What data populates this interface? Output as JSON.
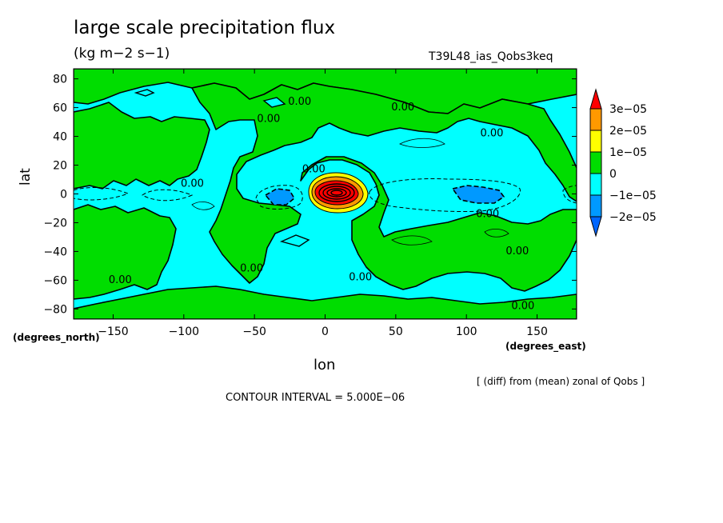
{
  "chart_data": {
    "type": "contour",
    "title": "large scale precipitation flux",
    "units": "(kg m−2 s−1)",
    "run_id": "T39L48_ias_Qobs3keq",
    "xlabel": "lon",
    "ylabel": "lat",
    "x_units": "(degrees_east)",
    "y_units": "(degrees_north)",
    "derivation": "[ (diff) from (mean) zonal of Qobs ]",
    "contour_interval": "CONTOUR INTERVAL = 5.000E−06",
    "xlim": [
      -178,
      178
    ],
    "ylim": [
      -87,
      87
    ],
    "x_ticks": [
      -150,
      -100,
      -50,
      0,
      50,
      100,
      150
    ],
    "x_tick_labels": [
      "−150",
      "−100",
      "−50",
      "0",
      "50",
      "100",
      "150"
    ],
    "y_ticks": [
      80,
      60,
      40,
      20,
      0,
      -20,
      -40,
      -60,
      -80
    ],
    "y_tick_labels": [
      "80",
      "60",
      "40",
      "20",
      "0",
      "−20",
      "−40",
      "−60",
      "−80"
    ],
    "levels": [
      -2e-05,
      -1e-05,
      0,
      1e-05,
      2e-05,
      3e-05
    ],
    "colorbar": [
      {
        "label": "3e−05",
        "color": "#ff0000"
      },
      {
        "label": "2e−05",
        "color": "#ff9900"
      },
      {
        "label": "1e−05",
        "color": "#ffff00"
      },
      {
        "label": "0",
        "color": "#00dd00"
      },
      {
        "label": "−1e−05",
        "color": "#00ffff"
      },
      {
        "label": "−2e−05",
        "color": "#0099ff"
      }
    ],
    "colors": {
      "above_3e-05": "#ff0000",
      "2e-05_to_3e-05": "#ff9900",
      "1e-05_to_2e-05": "#ffff00",
      "0_to_1e-05": "#00dd00",
      "-1e-05_to_0": "#00ffff",
      "-2e-05_to_-1e-05": "#0099ff",
      "below_-2e-05": "#0066ff"
    },
    "contour_labels": [
      {
        "text": "0.00",
        "lon": -40,
        "lat": 50
      },
      {
        "text": "0.00",
        "lon": -18,
        "lat": 62
      },
      {
        "text": "0.00",
        "lon": 55,
        "lat": 58
      },
      {
        "text": "0.00",
        "lon": 118,
        "lat": 40
      },
      {
        "text": "0.00",
        "lon": -94,
        "lat": 5
      },
      {
        "text": "0.00",
        "lon": -8,
        "lat": 15
      },
      {
        "text": "0.00",
        "lon": 115,
        "lat": -16
      },
      {
        "text": "0.00",
        "lon": 136,
        "lat": -42
      },
      {
        "text": "0.00",
        "lon": -52,
        "lat": -54
      },
      {
        "text": "0.00",
        "lon": -145,
        "lat": -62
      },
      {
        "text": "0.00",
        "lon": 25,
        "lat": -60
      },
      {
        "text": "0.00",
        "lon": 140,
        "lat": -80
      }
    ]
  }
}
